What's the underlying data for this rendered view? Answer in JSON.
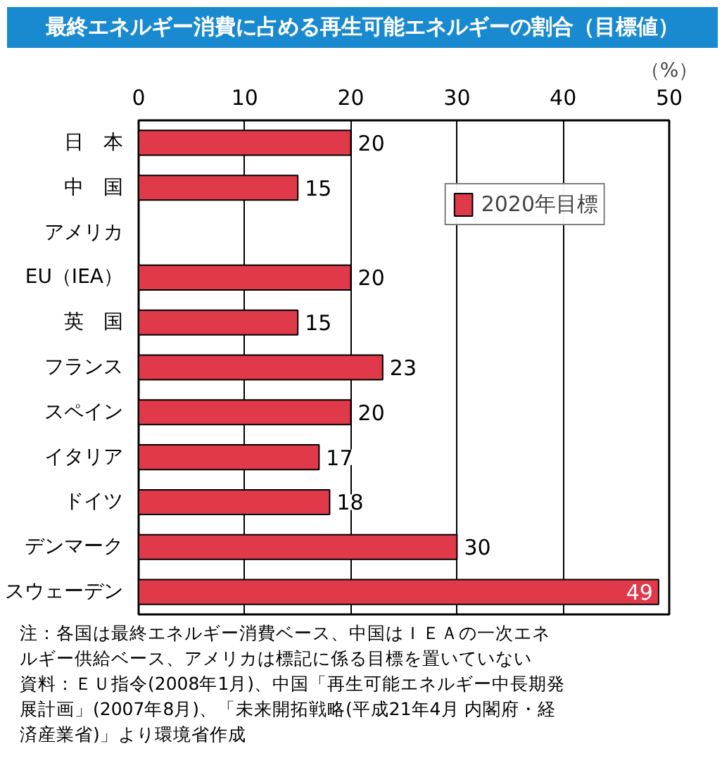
{
  "chart_data": {
    "type": "bar",
    "orientation": "horizontal",
    "title": "最終エネルギー消費に占める再生可能エネルギーの割合（目標値）",
    "xlabel": "（%）",
    "categories": [
      "日　本",
      "中　国",
      "アメリカ",
      "EU（IEA）",
      "英　国",
      "フランス",
      "スペイン",
      "イタリア",
      "ドイツ",
      "デンマーク",
      "スウェーデン"
    ],
    "series": [
      {
        "name": "2020年目標",
        "color": "#e03a4a",
        "values": [
          20,
          15,
          null,
          20,
          15,
          23,
          20,
          17,
          18,
          30,
          49
        ]
      }
    ],
    "xlim": [
      0,
      50
    ],
    "xticks": [
      0,
      10,
      20,
      30,
      40,
      50
    ],
    "grid": "x",
    "legend": "top right",
    "data_labels": true,
    "annotations": [
      "注：各国は最終エネルギー消費ベース、中国はＩＥＡの一次エネルギー供給ベース、アメリカは標記に係る目標を置いていない",
      "資料：ＥＵ指令(2008年1月)、中国「再生可能エネルギー中長期発展計画」(2007年8月)、「未来開拓戦略(平成21年4月 内閣府・経済産業省)」より環境省作成"
    ]
  }
}
